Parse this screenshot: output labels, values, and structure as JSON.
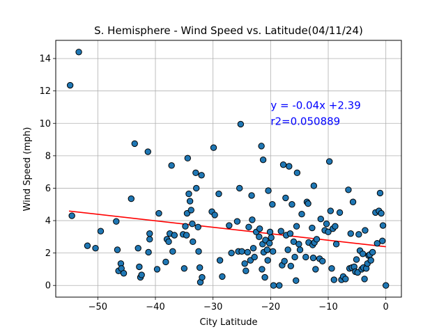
{
  "chart_data": {
    "type": "scatter",
    "title": "S. Hemisphere - Wind Speed vs. Latitude(04/11/24)",
    "xlabel": "City Latitude",
    "ylabel": "Wind Speed (mph)",
    "xlim": [
      -57.3,
      2.7
    ],
    "ylim": [
      -0.72,
      15.12
    ],
    "xticks": [
      -50,
      -40,
      -30,
      -20,
      -10,
      0
    ],
    "yticks": [
      0,
      2,
      4,
      6,
      8,
      10,
      12,
      14
    ],
    "grid": true,
    "colors": {
      "point_fill": "#1f77b4",
      "point_edge": "#000000",
      "regression": "#ff0000",
      "annotation": "#0000ff",
      "grid": "#b0b0b0"
    },
    "regression": {
      "slope": -0.04,
      "intercept": 2.39,
      "x_range": [
        -55.0,
        0.0
      ]
    },
    "annotation_lines": [
      "y = -0.04x +2.39",
      "r2=0.050889"
    ],
    "annotation_pos": {
      "x": -20,
      "y": 10.9
    },
    "points": [
      [
        -54.8,
        12.35
      ],
      [
        -53.3,
        14.4
      ],
      [
        -54.5,
        4.3
      ],
      [
        -51.8,
        2.45
      ],
      [
        -50.4,
        2.3
      ],
      [
        -49.5,
        3.35
      ],
      [
        -46.8,
        3.95
      ],
      [
        -46.6,
        2.2
      ],
      [
        -46.4,
        0.9
      ],
      [
        -46.0,
        1.35
      ],
      [
        -45.9,
        1.05
      ],
      [
        -45.5,
        0.75
      ],
      [
        -44.2,
        5.35
      ],
      [
        -43.6,
        8.75
      ],
      [
        -43.0,
        2.3
      ],
      [
        -42.8,
        1.15
      ],
      [
        -42.6,
        0.5
      ],
      [
        -42.4,
        0.65
      ],
      [
        -41.3,
        8.25
      ],
      [
        -41.2,
        2.05
      ],
      [
        -41.0,
        2.85
      ],
      [
        -41.0,
        3.2
      ],
      [
        -39.7,
        1.0
      ],
      [
        -39.4,
        4.45
      ],
      [
        -38.2,
        1.45
      ],
      [
        -38.0,
        2.85
      ],
      [
        -37.7,
        2.7
      ],
      [
        -37.5,
        3.2
      ],
      [
        -37.2,
        7.4
      ],
      [
        -37.0,
        2.1
      ],
      [
        -36.7,
        3.1
      ],
      [
        -35.2,
        3.15
      ],
      [
        -35.0,
        1.05
      ],
      [
        -34.8,
        3.65
      ],
      [
        -34.6,
        3.1
      ],
      [
        -34.5,
        4.45
      ],
      [
        -34.4,
        7.85
      ],
      [
        -34.2,
        5.65
      ],
      [
        -34.0,
        5.2
      ],
      [
        -33.8,
        4.65
      ],
      [
        -33.6,
        3.8
      ],
      [
        -33.5,
        2.7
      ],
      [
        -33.0,
        6.95
      ],
      [
        -32.9,
        6.0
      ],
      [
        -32.6,
        3.6
      ],
      [
        -32.5,
        2.1
      ],
      [
        -32.3,
        1.1
      ],
      [
        -32.2,
        0.2
      ],
      [
        -32.0,
        6.8
      ],
      [
        -31.9,
        0.5
      ],
      [
        -30.2,
        4.55
      ],
      [
        -29.9,
        8.5
      ],
      [
        -29.7,
        4.35
      ],
      [
        -29.0,
        5.65
      ],
      [
        -28.8,
        1.55
      ],
      [
        -28.4,
        0.55
      ],
      [
        -27.2,
        3.7
      ],
      [
        -26.8,
        2.0
      ],
      [
        -25.8,
        3.95
      ],
      [
        -25.6,
        2.1
      ],
      [
        -25.4,
        6.0
      ],
      [
        -25.2,
        9.95
      ],
      [
        -25.0,
        2.1
      ],
      [
        -24.5,
        1.35
      ],
      [
        -24.3,
        0.9
      ],
      [
        -24.0,
        2.05
      ],
      [
        -23.8,
        3.6
      ],
      [
        -23.5,
        1.55
      ],
      [
        -23.3,
        5.55
      ],
      [
        -23.2,
        4.05
      ],
      [
        -23.0,
        2.3
      ],
      [
        -22.8,
        1.75
      ],
      [
        -22.5,
        3.3
      ],
      [
        -22.0,
        3.0
      ],
      [
        -21.9,
        3.5
      ],
      [
        -21.6,
        8.6
      ],
      [
        -21.5,
        1.0
      ],
      [
        -21.4,
        2.55
      ],
      [
        -21.3,
        7.75
      ],
      [
        -21.2,
        2.05
      ],
      [
        -21.0,
        0.5
      ],
      [
        -20.9,
        2.8
      ],
      [
        -20.6,
        2.2
      ],
      [
        -20.5,
        1.55
      ],
      [
        -20.4,
        5.85
      ],
      [
        -20.2,
        2.6
      ],
      [
        -20.1,
        3.3
      ],
      [
        -19.9,
        2.95
      ],
      [
        -19.7,
        5.0
      ],
      [
        -19.6,
        2.1
      ],
      [
        -19.5,
        0.0
      ],
      [
        -18.5,
        0.0
      ],
      [
        -18.2,
        3.35
      ],
      [
        -18.0,
        1.25
      ],
      [
        -17.8,
        7.45
      ],
      [
        -17.6,
        1.5
      ],
      [
        -17.4,
        5.4
      ],
      [
        -17.3,
        3.1
      ],
      [
        -17.0,
        2.2
      ],
      [
        -16.8,
        7.35
      ],
      [
        -16.6,
        3.2
      ],
      [
        -16.5,
        1.2
      ],
      [
        -16.3,
        5.0
      ],
      [
        -16.0,
        2.7
      ],
      [
        -15.8,
        1.75
      ],
      [
        -15.6,
        0.3
      ],
      [
        -15.5,
        3.65
      ],
      [
        -15.4,
        6.95
      ],
      [
        -15.1,
        2.55
      ],
      [
        -14.9,
        2.2
      ],
      [
        -14.6,
        4.4
      ],
      [
        -13.9,
        1.75
      ],
      [
        -13.7,
        5.15
      ],
      [
        -13.5,
        5.05
      ],
      [
        -13.4,
        2.65
      ],
      [
        -12.8,
        3.55
      ],
      [
        -12.7,
        2.5
      ],
      [
        -12.6,
        1.7
      ],
      [
        -12.5,
        6.15
      ],
      [
        -12.4,
        2.65
      ],
      [
        -12.2,
        1.0
      ],
      [
        -12.0,
        2.85
      ],
      [
        -11.5,
        1.65
      ],
      [
        -11.3,
        4.1
      ],
      [
        -11.0,
        1.5
      ],
      [
        -10.6,
        3.4
      ],
      [
        -10.3,
        3.8
      ],
      [
        -10.0,
        3.3
      ],
      [
        -9.8,
        7.65
      ],
      [
        -9.6,
        4.6
      ],
      [
        -9.4,
        1.05
      ],
      [
        -9.2,
        3.5
      ],
      [
        -9.0,
        0.35
      ],
      [
        -8.8,
        3.65
      ],
      [
        -8.6,
        2.55
      ],
      [
        -8.0,
        4.5
      ],
      [
        -7.7,
        0.35
      ],
      [
        -7.4,
        0.55
      ],
      [
        -7.0,
        0.4
      ],
      [
        -6.5,
        5.9
      ],
      [
        -6.3,
        1.05
      ],
      [
        -6.1,
        3.2
      ],
      [
        -5.9,
        1.1
      ],
      [
        -5.7,
        5.15
      ],
      [
        -5.5,
        1.15
      ],
      [
        -5.3,
        0.85
      ],
      [
        -5.1,
        1.6
      ],
      [
        -4.9,
        0.8
      ],
      [
        -4.7,
        3.15
      ],
      [
        -4.5,
        2.15
      ],
      [
        -4.2,
        1.0
      ],
      [
        -4.0,
        1.95
      ],
      [
        -3.9,
        1.1
      ],
      [
        -3.7,
        0.4
      ],
      [
        -3.6,
        3.4
      ],
      [
        -3.4,
        1.05
      ],
      [
        -3.2,
        1.35
      ],
      [
        -3.0,
        1.85
      ],
      [
        -2.8,
        1.9
      ],
      [
        -2.6,
        1.55
      ],
      [
        -2.3,
        2.05
      ],
      [
        -1.8,
        4.5
      ],
      [
        -1.5,
        2.6
      ],
      [
        -1.2,
        4.6
      ],
      [
        -1.0,
        5.7
      ],
      [
        -0.8,
        4.45
      ],
      [
        -0.6,
        2.75
      ],
      [
        -0.5,
        3.7
      ],
      [
        0.0,
        0.0
      ]
    ]
  }
}
